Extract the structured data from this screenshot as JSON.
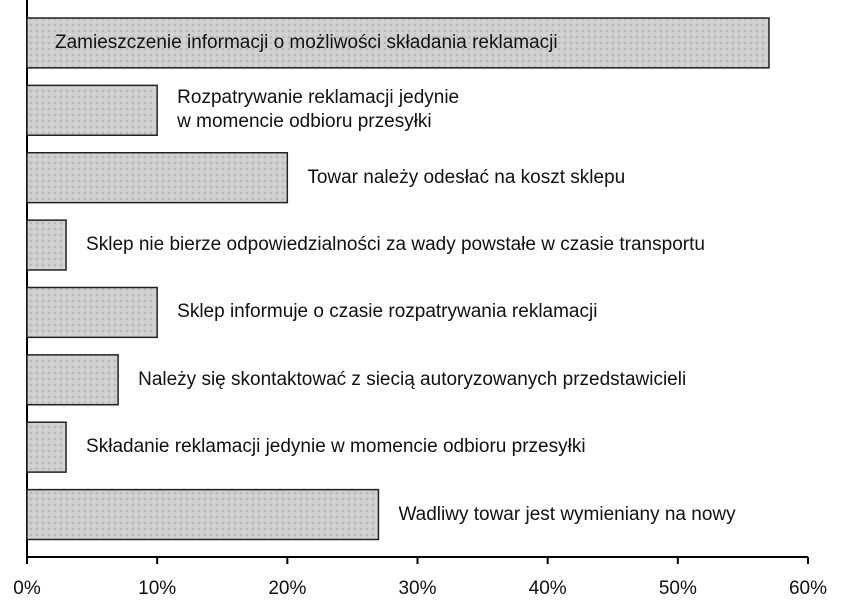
{
  "chart_data": {
    "type": "bar",
    "orientation": "horizontal",
    "categories": [
      "Zamieszczenie informacji o możliwości składania reklamacji",
      "Rozpatrywanie reklamacji jedynie\nw momencie odbioru przesyłki",
      "Towar należy odesłać na koszt sklepu",
      "Sklep nie bierze odpowiedzialności za wady powstałe w czasie transportu",
      "Sklep informuje o czasie rozpatrywania reklamacji",
      "Należy się skontaktować z siecią autoryzowanych przedstawicieli",
      "Składanie reklamacji jedynie w momencie odbioru przesyłki",
      "Wadliwy towar jest wymieniany na nowy"
    ],
    "values": [
      57,
      10,
      20,
      3,
      10,
      7,
      3,
      27
    ],
    "color": "#c9c9c9",
    "xlim": [
      0,
      60
    ],
    "xticks": [
      {
        "value": 0,
        "label": "0%"
      },
      {
        "value": 10,
        "label": "10%"
      },
      {
        "value": 20,
        "label": "20%"
      },
      {
        "value": 30,
        "label": "30%"
      },
      {
        "value": 40,
        "label": "40%"
      },
      {
        "value": 50,
        "label": "50%"
      },
      {
        "value": 60,
        "label": "60%"
      }
    ],
    "grid": false
  }
}
